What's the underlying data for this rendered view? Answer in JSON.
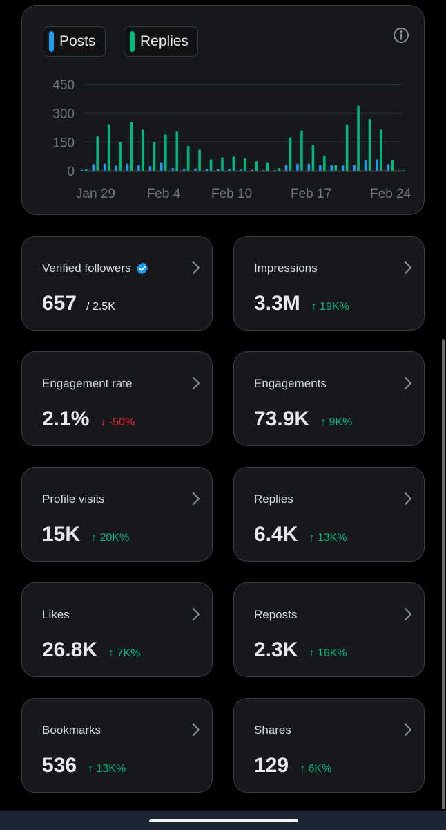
{
  "legend": {
    "posts_label": "Posts",
    "replies_label": "Replies"
  },
  "colors": {
    "posts": "#1d9bf0",
    "replies": "#00ba7c",
    "up": "#00ba7c",
    "down": "#f4212e"
  },
  "chart_data": {
    "type": "bar",
    "title": "",
    "xlabel": "",
    "ylabel": "",
    "ylim": [
      0,
      450
    ],
    "yticks": [
      "450",
      "300",
      "150",
      "0"
    ],
    "ytick_values": [
      450,
      300,
      150,
      0
    ],
    "xtick_labels": [
      "Jan 29",
      "Feb 4",
      "Feb 10",
      "Feb 17",
      "Feb 24"
    ],
    "xtick_dates": [
      "2024-01-29",
      "2024-02-04",
      "2024-02-10",
      "2024-02-17",
      "2024-02-24"
    ],
    "categories": [
      "2024-01-28",
      "2024-01-29",
      "2024-01-30",
      "2024-01-31",
      "2024-02-01",
      "2024-02-02",
      "2024-02-03",
      "2024-02-04",
      "2024-02-05",
      "2024-02-06",
      "2024-02-07",
      "2024-02-08",
      "2024-02-09",
      "2024-02-10",
      "2024-02-11",
      "2024-02-12",
      "2024-02-13",
      "2024-02-14",
      "2024-02-15",
      "2024-02-16",
      "2024-02-17",
      "2024-02-18",
      "2024-02-19",
      "2024-02-20",
      "2024-02-21",
      "2024-02-22",
      "2024-02-23",
      "2024-02-24",
      "2024-02-25"
    ],
    "series": [
      {
        "name": "Posts",
        "values": [
          4,
          35,
          38,
          28,
          38,
          30,
          25,
          45,
          15,
          10,
          12,
          10,
          8,
          10,
          6,
          5,
          3,
          3,
          30,
          38,
          38,
          30,
          30,
          28,
          30,
          55,
          60,
          35,
          2
        ]
      },
      {
        "name": "Replies",
        "values": [
          8,
          180,
          240,
          150,
          255,
          215,
          150,
          190,
          205,
          130,
          110,
          60,
          70,
          75,
          65,
          50,
          45,
          15,
          175,
          210,
          135,
          80,
          30,
          240,
          340,
          270,
          215,
          55,
          3
        ]
      }
    ],
    "grid": true
  },
  "info_icon": "info-icon",
  "chevron_icon": "chevron-right-icon",
  "stats": [
    {
      "label": "Verified followers",
      "value": "657",
      "sub": "/ 2.5K",
      "verified": true
    },
    {
      "label": "Impressions",
      "value": "3.3M",
      "change": "↑ 19K%",
      "dir": "up"
    },
    {
      "label": "Engagement rate",
      "value": "2.1%",
      "change": "↓ -50%",
      "dir": "down"
    },
    {
      "label": "Engagements",
      "value": "73.9K",
      "change": "↑ 9K%",
      "dir": "up"
    },
    {
      "label": "Profile visits",
      "value": "15K",
      "change": "↑ 20K%",
      "dir": "up"
    },
    {
      "label": "Replies",
      "value": "6.4K",
      "change": "↑ 13K%",
      "dir": "up"
    },
    {
      "label": "Likes",
      "value": "26.8K",
      "change": "↑ 7K%",
      "dir": "up"
    },
    {
      "label": "Reposts",
      "value": "2.3K",
      "change": "↑ 16K%",
      "dir": "up"
    },
    {
      "label": "Bookmarks",
      "value": "536",
      "change": "↑ 13K%",
      "dir": "up"
    },
    {
      "label": "Shares",
      "value": "129",
      "change": "↑ 6K%",
      "dir": "up"
    }
  ]
}
